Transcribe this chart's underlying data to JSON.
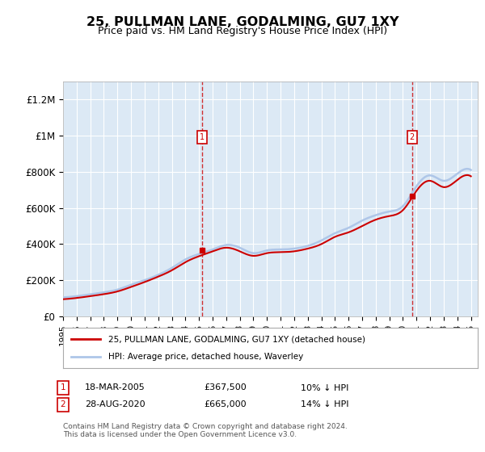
{
  "title": "25, PULLMAN LANE, GODALMING, GU7 1XY",
  "subtitle": "Price paid vs. HM Land Registry's House Price Index (HPI)",
  "legend_line1": "25, PULLMAN LANE, GODALMING, GU7 1XY (detached house)",
  "legend_line2": "HPI: Average price, detached house, Waverley",
  "annotation1": {
    "num": "1",
    "date": "18-MAR-2005",
    "price": "£367,500",
    "hpi": "10% ↓ HPI"
  },
  "annotation2": {
    "num": "2",
    "date": "28-AUG-2020",
    "price": "£665,000",
    "hpi": "14% ↓ HPI"
  },
  "footnote": "Contains HM Land Registry data © Crown copyright and database right 2024.\nThis data is licensed under the Open Government Licence v3.0.",
  "hpi_color": "#aec6e8",
  "price_color": "#cc0000",
  "annotation_box_color": "#cc0000",
  "background_color": "#dce9f5",
  "plot_bg_color": "#dce9f5",
  "ylim": [
    0,
    1300000
  ],
  "yticks": [
    0,
    200000,
    400000,
    600000,
    800000,
    1000000,
    1200000
  ],
  "ytick_labels": [
    "£0",
    "£200K",
    "£400K",
    "£600K",
    "£800K",
    "£1M",
    "£1.2M"
  ],
  "sale1_x": 2005.21,
  "sale1_y": 367500,
  "sale2_x": 2020.66,
  "sale2_y": 665000,
  "hpi_years": [
    1995,
    1996,
    1997,
    1998,
    1999,
    2000,
    2001,
    2002,
    2003,
    2004,
    2005,
    2006,
    2007,
    2008,
    2009,
    2010,
    2011,
    2012,
    2013,
    2014,
    2015,
    2016,
    2017,
    2018,
    2019,
    2020,
    2021,
    2022,
    2023,
    2024,
    2025
  ],
  "hpi_values": [
    105000,
    112000,
    122000,
    133000,
    148000,
    175000,
    200000,
    230000,
    268000,
    315000,
    345000,
    370000,
    395000,
    380000,
    350000,
    365000,
    370000,
    375000,
    390000,
    420000,
    460000,
    490000,
    530000,
    560000,
    580000,
    610000,
    720000,
    780000,
    750000,
    790000,
    810000
  ],
  "price_years": [
    1995,
    1996,
    1997,
    1998,
    1999,
    2000,
    2001,
    2002,
    2003,
    2004,
    2005,
    2006,
    2007,
    2008,
    2009,
    2010,
    2011,
    2012,
    2013,
    2014,
    2015,
    2016,
    2017,
    2018,
    2019,
    2020,
    2021,
    2022,
    2023,
    2024,
    2025
  ],
  "price_values": [
    95000,
    102000,
    112000,
    123000,
    138000,
    163000,
    190000,
    220000,
    255000,
    300000,
    333000,
    360000,
    380000,
    360000,
    335000,
    350000,
    355000,
    360000,
    375000,
    400000,
    440000,
    465000,
    500000,
    535000,
    555000,
    588000,
    695000,
    750000,
    715000,
    755000,
    775000
  ],
  "xtick_years": [
    1995,
    1996,
    1997,
    1998,
    1999,
    2000,
    2001,
    2002,
    2003,
    2004,
    2005,
    2006,
    2007,
    2008,
    2009,
    2010,
    2011,
    2012,
    2013,
    2014,
    2015,
    2016,
    2017,
    2018,
    2019,
    2020,
    2021,
    2022,
    2023,
    2024,
    2025
  ]
}
